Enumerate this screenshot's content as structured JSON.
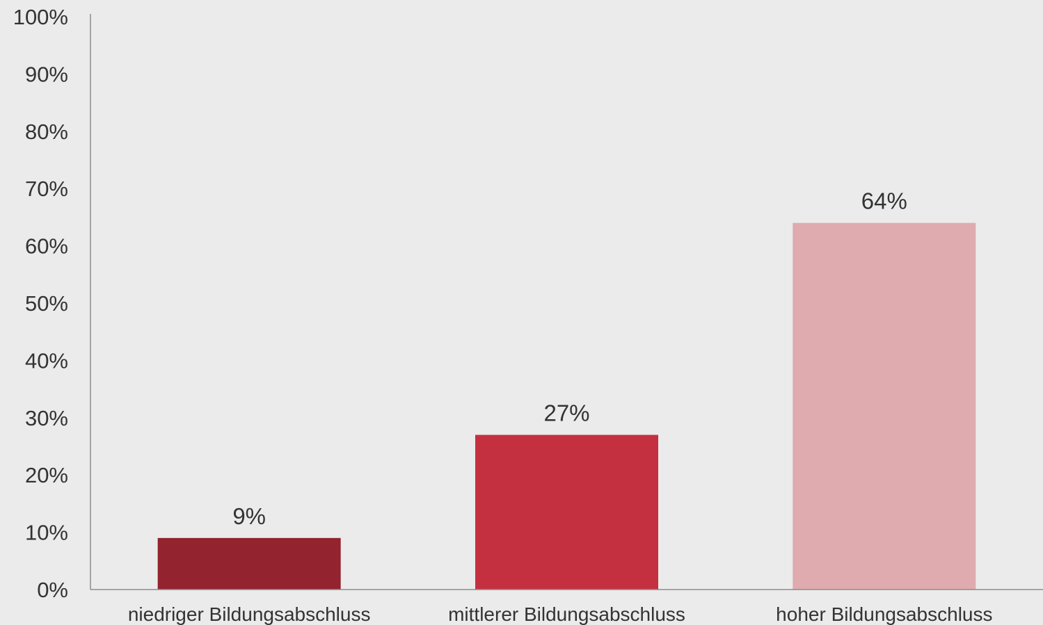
{
  "chart_data": {
    "type": "bar",
    "categories": [
      "niedriger Bildungsabschluss",
      "mittlerer Bildungsabschluss",
      "hoher Bildungsabschluss"
    ],
    "values": [
      9,
      27,
      64
    ],
    "data_labels": [
      "9%",
      "27%",
      "64%"
    ],
    "colors": [
      "#93232e",
      "#c53040",
      "#dfabae"
    ],
    "ylim": [
      0,
      100
    ],
    "yticks": [
      0,
      10,
      20,
      30,
      40,
      50,
      60,
      70,
      80,
      90,
      100
    ],
    "ytick_labels": [
      "0%",
      "10%",
      "20%",
      "30%",
      "40%",
      "50%",
      "60%",
      "70%",
      "80%",
      "90%",
      "100%"
    ],
    "grid": false,
    "legend": "none",
    "background": "#ebebeb",
    "axis_color": "#8c8c8c"
  }
}
